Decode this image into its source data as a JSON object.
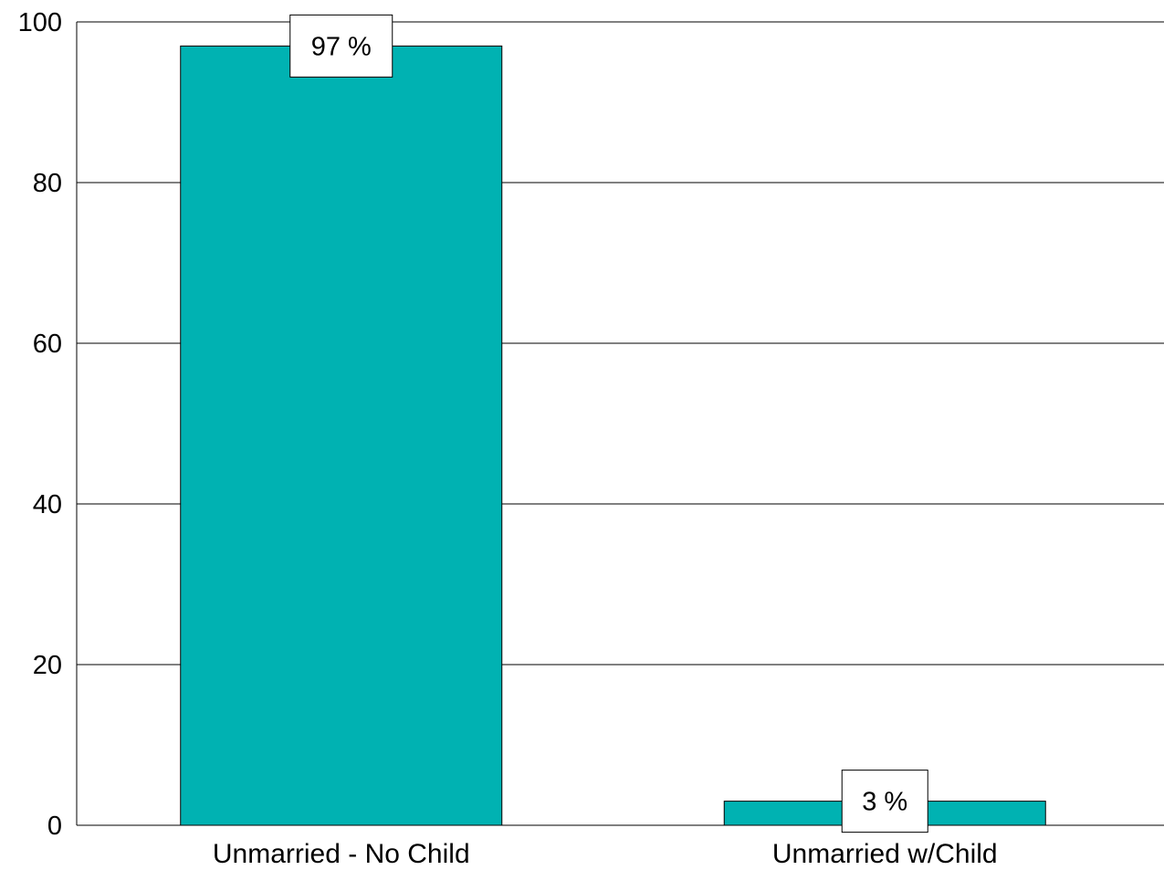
{
  "chart_data": {
    "type": "bar",
    "categories": [
      "Unmarried - No Child",
      "Unmarried w/Child"
    ],
    "values": [
      97,
      3
    ],
    "data_labels": [
      "97 %",
      "3 %"
    ],
    "ylim": [
      0,
      100
    ],
    "yticks": [
      0,
      20,
      40,
      60,
      80,
      100
    ],
    "ytick_labels": [
      "0",
      "20",
      "40",
      "60",
      "80",
      "100"
    ],
    "grid": true,
    "legend": "none",
    "bar_color": "#00B2B2"
  }
}
